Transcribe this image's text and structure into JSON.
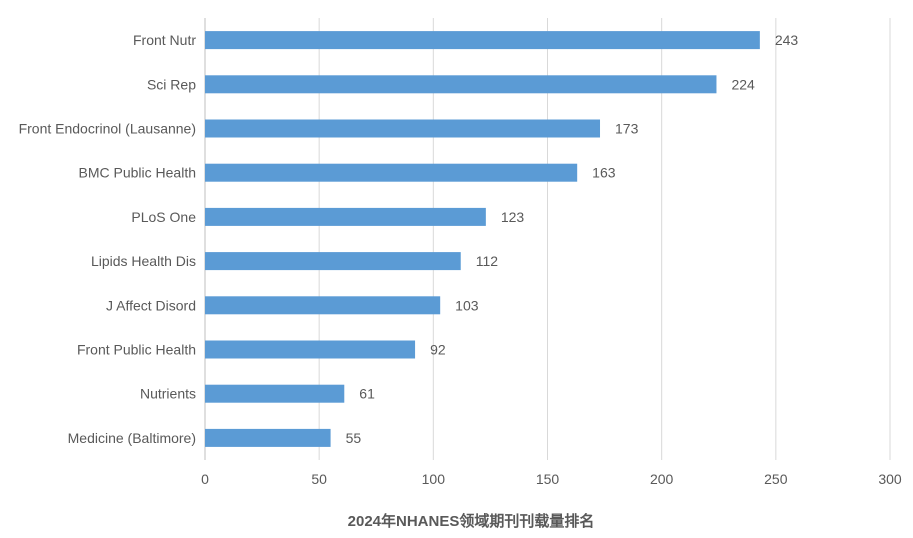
{
  "chart_data": {
    "type": "bar",
    "orientation": "horizontal",
    "title": "2024年NHANES领域期刊刊载量排名",
    "categories": [
      "Front Nutr",
      "Sci Rep",
      "Front Endocrinol (Lausanne)",
      "BMC Public Health",
      "PLoS One",
      "Lipids Health Dis",
      "J Affect Disord",
      "Front Public Health",
      "Nutrients",
      "Medicine (Baltimore)"
    ],
    "values": [
      243,
      224,
      173,
      163,
      123,
      112,
      103,
      92,
      61,
      55
    ],
    "xlim": [
      0,
      300
    ],
    "xticks": [
      0,
      50,
      100,
      150,
      200,
      250,
      300
    ],
    "grid": "vertical",
    "bar_color": "#5B9BD5"
  }
}
